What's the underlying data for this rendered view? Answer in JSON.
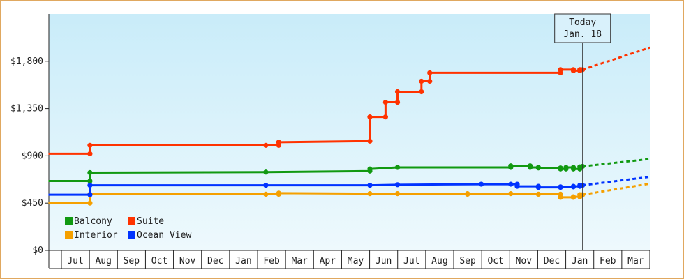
{
  "chart_data": {
    "type": "line",
    "title": "",
    "xlabel": "",
    "ylabel": "",
    "ylim": [
      0,
      2250
    ],
    "yticks": [
      0,
      450,
      900,
      1350,
      1800
    ],
    "ytick_labels": [
      "$0",
      "$450",
      "$900",
      "$1,350",
      "$1,800"
    ],
    "x_start": "2017-06-01",
    "x_end": "2018-04-01",
    "months": [
      {
        "label": "Jul",
        "date": "2017-07-01"
      },
      {
        "label": "Aug",
        "date": "2017-08-01"
      },
      {
        "label": "Sep",
        "date": "2017-09-01"
      },
      {
        "label": "Oct",
        "date": "2017-10-01"
      },
      {
        "label": "Nov",
        "date": "2017-11-01"
      },
      {
        "label": "Dec",
        "date": "2017-12-01"
      },
      {
        "label": "Jan",
        "date": "2018-01-01"
      },
      {
        "label": "Feb",
        "date": "2018-02-01"
      },
      {
        "label": "Mar",
        "date": "2018-03-01"
      },
      {
        "label": "Apr",
        "date": "2018-04-01"
      },
      {
        "label": "May",
        "date": "2018-05-01"
      },
      {
        "label": "Jun",
        "date": "2018-06-01"
      },
      {
        "label": "Jul",
        "date": "2018-07-01"
      },
      {
        "label": "Aug",
        "date": "2018-08-01"
      },
      {
        "label": "Sep",
        "date": "2018-09-01"
      },
      {
        "label": "Oct",
        "date": "2018-10-01"
      },
      {
        "label": "Nov",
        "date": "2018-11-01"
      },
      {
        "label": "Dec",
        "date": "2018-12-01"
      },
      {
        "label": "Jan",
        "date": "2019-01-01"
      },
      {
        "label": "Feb",
        "date": "2019-02-01"
      },
      {
        "label": "Mar",
        "date": "2019-03-01"
      }
    ],
    "today": {
      "line1": "Today",
      "line2": "Jan. 18",
      "date": "2019-01-18"
    },
    "projection_end": "2019-04-01",
    "legend_placement": "bottom-left",
    "grid": false,
    "background": {
      "top": "#c9ecf9",
      "bottom": "#eef9fd"
    },
    "series": [
      {
        "name": "Balcony",
        "color": "#119911",
        "points": [
          [
            "2017-05-31",
            660
          ],
          [
            "2017-08-01",
            660
          ],
          [
            "2017-08-01",
            740
          ],
          [
            "2018-02-08",
            745
          ],
          [
            "2018-06-01",
            755
          ],
          [
            "2018-06-01",
            775
          ],
          [
            "2018-07-01",
            790
          ],
          [
            "2018-11-01",
            790
          ],
          [
            "2018-11-01",
            805
          ],
          [
            "2018-11-22",
            805
          ],
          [
            "2018-11-22",
            790
          ],
          [
            "2018-12-01",
            790
          ],
          [
            "2018-12-01",
            785
          ],
          [
            "2018-12-25",
            785
          ],
          [
            "2018-12-25",
            775
          ],
          [
            "2018-12-31",
            775
          ],
          [
            "2018-12-31",
            790
          ],
          [
            "2019-01-08",
            790
          ],
          [
            "2019-01-08",
            775
          ],
          [
            "2019-01-15",
            775
          ],
          [
            "2019-01-15",
            795
          ],
          [
            "2019-01-18",
            800
          ]
        ],
        "projection_end_value": 870
      },
      {
        "name": "Suite",
        "color": "#ff3300",
        "points": [
          [
            "2017-05-31",
            920
          ],
          [
            "2017-08-01",
            920
          ],
          [
            "2017-08-01",
            1000
          ],
          [
            "2018-02-08",
            1000
          ],
          [
            "2018-02-22",
            1000
          ],
          [
            "2018-02-22",
            1030
          ],
          [
            "2018-06-01",
            1040
          ],
          [
            "2018-06-01",
            1270
          ],
          [
            "2018-06-18",
            1270
          ],
          [
            "2018-06-18",
            1410
          ],
          [
            "2018-07-01",
            1410
          ],
          [
            "2018-07-01",
            1510
          ],
          [
            "2018-07-27",
            1510
          ],
          [
            "2018-07-27",
            1610
          ],
          [
            "2018-08-05",
            1610
          ],
          [
            "2018-08-05",
            1690
          ],
          [
            "2018-12-25",
            1690
          ],
          [
            "2018-12-25",
            1720
          ],
          [
            "2019-01-08",
            1720
          ],
          [
            "2019-01-08",
            1710
          ],
          [
            "2019-01-15",
            1710
          ],
          [
            "2019-01-15",
            1720
          ],
          [
            "2019-01-18",
            1720
          ]
        ],
        "projection_end_value": 1930
      },
      {
        "name": "Interior",
        "color": "#f5a000",
        "points": [
          [
            "2017-05-31",
            450
          ],
          [
            "2017-08-01",
            450
          ],
          [
            "2017-08-01",
            535
          ],
          [
            "2018-02-08",
            535
          ],
          [
            "2018-02-22",
            535
          ],
          [
            "2018-02-22",
            545
          ],
          [
            "2018-06-01",
            540
          ],
          [
            "2018-07-01",
            540
          ],
          [
            "2018-09-15",
            540
          ],
          [
            "2018-09-15",
            535
          ],
          [
            "2018-11-01",
            540
          ],
          [
            "2018-12-01",
            535
          ],
          [
            "2018-12-25",
            535
          ],
          [
            "2018-12-25",
            505
          ],
          [
            "2019-01-08",
            505
          ],
          [
            "2019-01-08",
            510
          ],
          [
            "2019-01-15",
            510
          ],
          [
            "2019-01-15",
            530
          ],
          [
            "2019-01-18",
            530
          ]
        ],
        "projection_end_value": 635
      },
      {
        "name": "Ocean View",
        "color": "#0033ff",
        "points": [
          [
            "2017-05-31",
            530
          ],
          [
            "2017-08-01",
            530
          ],
          [
            "2017-08-01",
            620
          ],
          [
            "2018-02-08",
            620
          ],
          [
            "2018-06-01",
            620
          ],
          [
            "2018-07-01",
            625
          ],
          [
            "2018-09-30",
            630
          ],
          [
            "2018-11-01",
            630
          ],
          [
            "2018-11-08",
            630
          ],
          [
            "2018-11-08",
            610
          ],
          [
            "2018-12-01",
            610
          ],
          [
            "2018-12-01",
            600
          ],
          [
            "2018-12-25",
            600
          ],
          [
            "2018-12-25",
            605
          ],
          [
            "2019-01-08",
            605
          ],
          [
            "2019-01-08",
            610
          ],
          [
            "2019-01-15",
            610
          ],
          [
            "2019-01-15",
            620
          ],
          [
            "2019-01-18",
            620
          ]
        ],
        "projection_end_value": 700
      }
    ],
    "legend": [
      {
        "name": "Balcony",
        "color": "#119911"
      },
      {
        "name": "Suite",
        "color": "#ff3300"
      },
      {
        "name": "Interior",
        "color": "#f5a000"
      },
      {
        "name": "Ocean View",
        "color": "#0033ff"
      }
    ]
  }
}
